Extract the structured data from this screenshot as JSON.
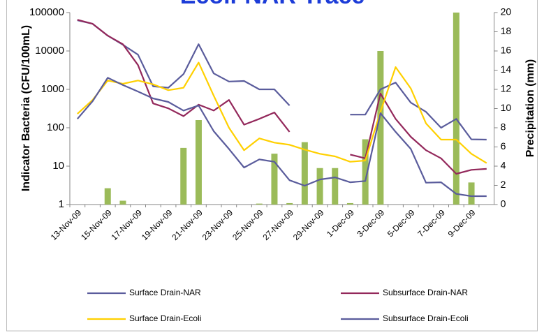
{
  "chart_data": {
    "type": "line",
    "title": "Ecoli-NAR Trace",
    "y_label": "Indicator Bacteria (CFU/100mL)",
    "y2_label": "Precipitation (mm)",
    "categories": [
      "13-Nov-09",
      null,
      "15-Nov-09",
      null,
      "17-Nov-09",
      null,
      "19-Nov-09",
      null,
      "21-Nov-09",
      null,
      "23-Nov-09",
      null,
      "25-Nov-09",
      null,
      "27-Nov-09",
      null,
      "29-Nov-09",
      null,
      "1-Dec-09",
      null,
      "3-Dec-09",
      null,
      "5-Dec-09",
      null,
      "7-Dec-09",
      null,
      "9-Dec-09",
      null
    ],
    "y_scale": "log",
    "ylim": [
      1,
      100000
    ],
    "yticks": [
      1,
      10,
      100,
      1000,
      10000,
      100000
    ],
    "y2lim": [
      0,
      20
    ],
    "y2ticks": [
      0,
      2,
      4,
      6,
      8,
      10,
      12,
      14,
      16,
      18,
      20
    ],
    "grid": false,
    "legend": "bottom",
    "series": [
      {
        "type": "bar",
        "axis": "y2",
        "color": "#9bbb59",
        "values": [
          0,
          0,
          1.7,
          0.4,
          0,
          0,
          0,
          5.9,
          8.8,
          0,
          0,
          0,
          0.1,
          5.3,
          0.15,
          6.5,
          3.8,
          3.8,
          0.15,
          6.8,
          16,
          0,
          0,
          0,
          0,
          20,
          2.3,
          0
        ]
      },
      {
        "name": "Surface Drain-NAR",
        "type": "line",
        "color": "#5a5c9c",
        "values": [
          63000,
          51000,
          25000,
          14500,
          8000,
          1200,
          1100,
          2500,
          15000,
          2600,
          1600,
          1650,
          1000,
          1000,
          380,
          null,
          null,
          null,
          220,
          220,
          1000,
          1500,
          450,
          260,
          100,
          170,
          50,
          49
        ]
      },
      {
        "name": "Subsurface Drain-NAR",
        "type": "line",
        "color": "#93285b",
        "values": [
          65000,
          51000,
          25000,
          15000,
          4300,
          430,
          320,
          200,
          400,
          280,
          530,
          120,
          170,
          250,
          78,
          null,
          null,
          null,
          20,
          16,
          780,
          170,
          58,
          26,
          16,
          6.3,
          8,
          8.5
        ]
      },
      {
        "name": "Surface Drain-Ecoli",
        "type": "line",
        "color": "#ffd000",
        "values": [
          230,
          530,
          1700,
          1400,
          1700,
          1350,
          950,
          1100,
          5000,
          680,
          100,
          26,
          53,
          41,
          36,
          27,
          21,
          18,
          13,
          14,
          260,
          3800,
          1050,
          130,
          49,
          49,
          21,
          12
        ]
      },
      {
        "name": "Subsurface Drain-Ecoli",
        "type": "line",
        "color": "#5a5c9c",
        "values": [
          170,
          490,
          2000,
          1300,
          880,
          580,
          470,
          280,
          380,
          81,
          28,
          9.2,
          15,
          13,
          4.3,
          3.1,
          4.5,
          5.1,
          3.8,
          4.1,
          240,
          78,
          28,
          3.7,
          3.8,
          1.9,
          1.65,
          1.65
        ]
      }
    ]
  }
}
